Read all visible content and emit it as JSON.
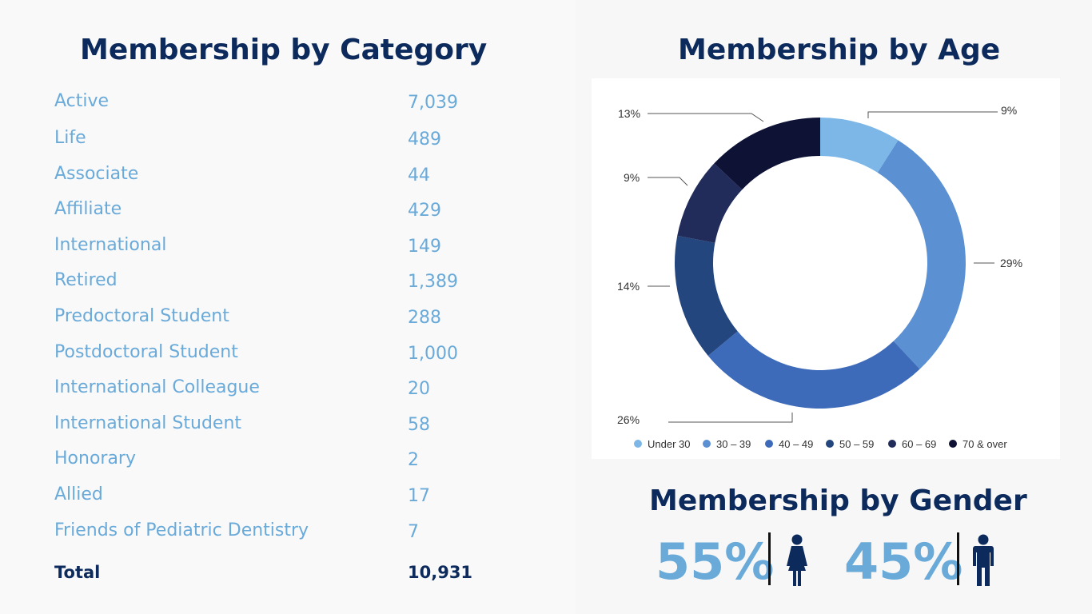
{
  "category_section": {
    "title": "Membership by Category",
    "rows": [
      {
        "label": "Active",
        "value": "7,039"
      },
      {
        "label": "Life",
        "value": "489"
      },
      {
        "label": "Associate",
        "value": "44"
      },
      {
        "label": "Affiliate",
        "value": "429"
      },
      {
        "label": "International",
        "value": "149"
      },
      {
        "label": "Retired",
        "value": "1,389"
      },
      {
        "label": "Predoctoral Student",
        "value": "288"
      },
      {
        "label": "Postdoctoral Student",
        "value": "1,000"
      },
      {
        "label": "International Colleague",
        "value": "20"
      },
      {
        "label": "International Student",
        "value": "58"
      },
      {
        "label": "Honorary",
        "value": "2"
      },
      {
        "label": "Allied",
        "value": "17"
      },
      {
        "label": "Friends of Pediatric Dentistry",
        "value": "7"
      }
    ],
    "total": {
      "label": "Total",
      "value": "10,931"
    }
  },
  "age_section": {
    "title": "Membership by Age"
  },
  "gender_section": {
    "title": "Membership by Gender",
    "female_pct": "55%",
    "male_pct": "45%",
    "female_icon": "female-person-icon",
    "male_icon": "male-person-icon"
  },
  "chart_data": {
    "type": "pie",
    "variant": "donut",
    "categories": [
      "Under 30",
      "30 – 39",
      "40 – 49",
      "50 – 59",
      "60 – 69",
      "70 & over"
    ],
    "values": [
      9,
      29,
      26,
      14,
      9,
      13
    ],
    "value_labels": [
      "9%",
      "29%",
      "26%",
      "14%",
      "9%",
      "13%"
    ],
    "colors": [
      "#7cb7e8",
      "#5b90d3",
      "#3d6bb9",
      "#24467f",
      "#212c5b",
      "#0e1336"
    ],
    "legend_position": "bottom"
  },
  "colors": {
    "title": "#0c2a5c",
    "label": "#6aaad9",
    "total": "#0c2a5c"
  }
}
